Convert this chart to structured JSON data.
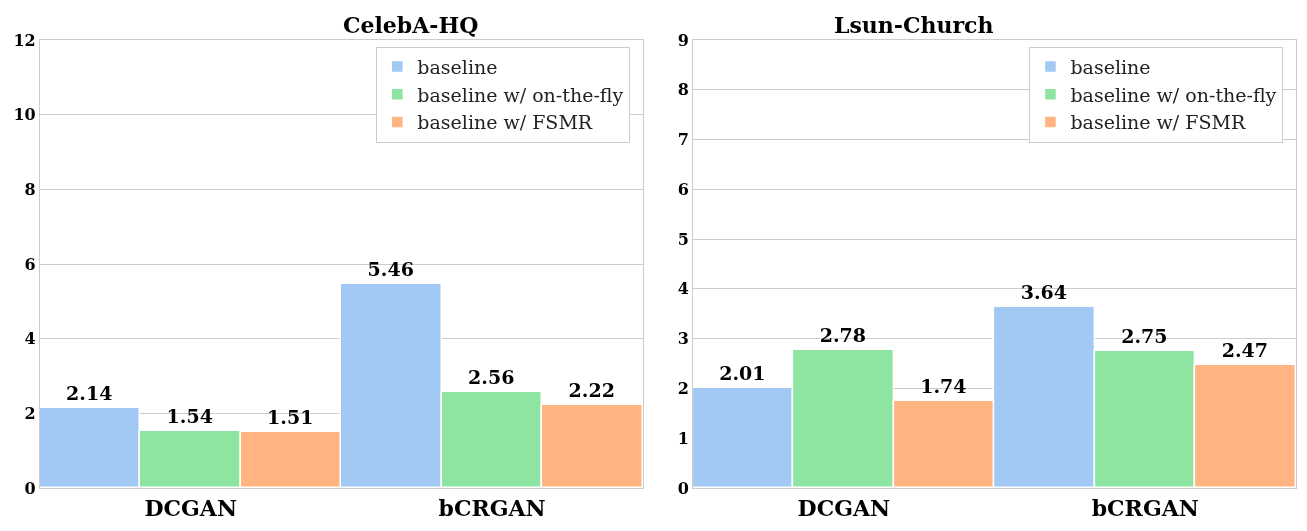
{
  "chart_data": [
    {
      "type": "bar",
      "title": "CelebA-HQ",
      "categories": [
        "DCGAN",
        "bCRGAN"
      ],
      "series": [
        {
          "name": "baseline",
          "color": "#a1c9f4",
          "values": [
            2.14,
            5.46
          ]
        },
        {
          "name": "baseline w/ on-the-fly",
          "color": "#8de5a1",
          "values": [
            1.54,
            2.56
          ]
        },
        {
          "name": "baseline w/ FSMR",
          "color": "#ffb482",
          "values": [
            1.51,
            2.22
          ]
        }
      ],
      "ylim": [
        0,
        12
      ],
      "yticks": [
        0,
        2,
        4,
        6,
        8,
        10,
        12
      ],
      "grid": "y",
      "legend": "top right",
      "data_labels": true
    },
    {
      "type": "bar",
      "title": "Lsun-Church",
      "categories": [
        "DCGAN",
        "bCRGAN"
      ],
      "series": [
        {
          "name": "baseline",
          "color": "#a1c9f4",
          "values": [
            2.01,
            3.64
          ]
        },
        {
          "name": "baseline w/ on-the-fly",
          "color": "#8de5a1",
          "values": [
            2.78,
            2.75
          ]
        },
        {
          "name": "baseline w/ FSMR",
          "color": "#ffb482",
          "values": [
            1.74,
            2.47
          ]
        }
      ],
      "ylim": [
        0,
        9
      ],
      "yticks": [
        0,
        1,
        2,
        3,
        4,
        5,
        6,
        7,
        8,
        9
      ],
      "grid": "y",
      "legend": "top right",
      "data_labels": true
    }
  ]
}
